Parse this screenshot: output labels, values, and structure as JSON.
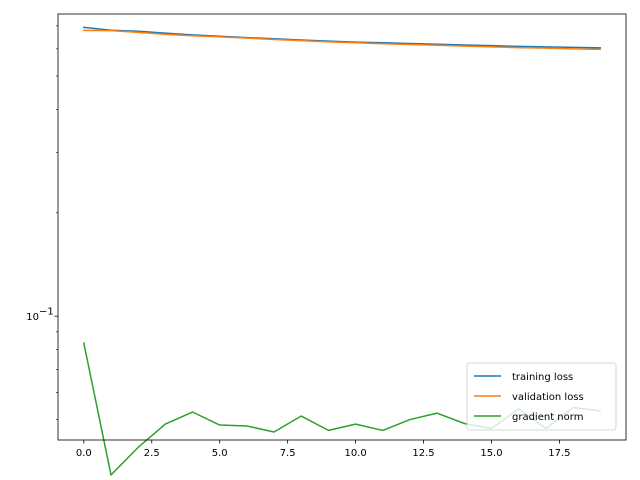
{
  "chart_data": {
    "type": "line",
    "title": "",
    "xlabel": "",
    "ylabel": "",
    "x": [
      0,
      1,
      2,
      3,
      4,
      5,
      6,
      7,
      8,
      9,
      10,
      11,
      12,
      13,
      14,
      15,
      16,
      17,
      18,
      19
    ],
    "xlim": [
      -0.95,
      19.95
    ],
    "ylim": [
      0.0436,
      0.758
    ],
    "yscale": "log",
    "grid": false,
    "x_ticks": [
      0.0,
      2.5,
      5.0,
      7.5,
      10.0,
      12.5,
      15.0,
      17.5
    ],
    "x_tick_labels": [
      "0.0",
      "2.5",
      "5.0",
      "7.5",
      "10.0",
      "12.5",
      "15.0",
      "17.5"
    ],
    "y_major_ticks": [
      0.1
    ],
    "y_major_tick_labels": [
      "10",
      "−1"
    ],
    "y_minor_ticks": [
      0.05,
      0.06,
      0.07,
      0.08,
      0.09,
      0.2,
      0.3,
      0.4,
      0.5,
      0.6,
      0.7
    ],
    "legend_position": "lower-right",
    "series": [
      {
        "name": "training loss",
        "color": "#1f77b4",
        "values": [
          0.693,
          0.68,
          0.675,
          0.667,
          0.659,
          0.653,
          0.647,
          0.642,
          0.637,
          0.632,
          0.628,
          0.625,
          0.622,
          0.619,
          0.616,
          0.613,
          0.61,
          0.608,
          0.606,
          0.604
        ]
      },
      {
        "name": "validation loss",
        "color": "#ff7f0e",
        "values": [
          0.679,
          0.678,
          0.67,
          0.661,
          0.655,
          0.65,
          0.645,
          0.639,
          0.634,
          0.629,
          0.625,
          0.621,
          0.618,
          0.615,
          0.611,
          0.608,
          0.605,
          0.603,
          0.6,
          0.598
        ]
      },
      {
        "name": "gradient norm",
        "color": "#2ca02c",
        "values": [
          0.0835,
          0.0345,
          0.0415,
          0.0485,
          0.0526,
          0.0482,
          0.0479,
          0.046,
          0.0512,
          0.0465,
          0.0485,
          0.0465,
          0.05,
          0.0522,
          0.0487,
          0.0471,
          0.0537,
          0.0471,
          0.0542,
          0.053
        ]
      }
    ]
  }
}
